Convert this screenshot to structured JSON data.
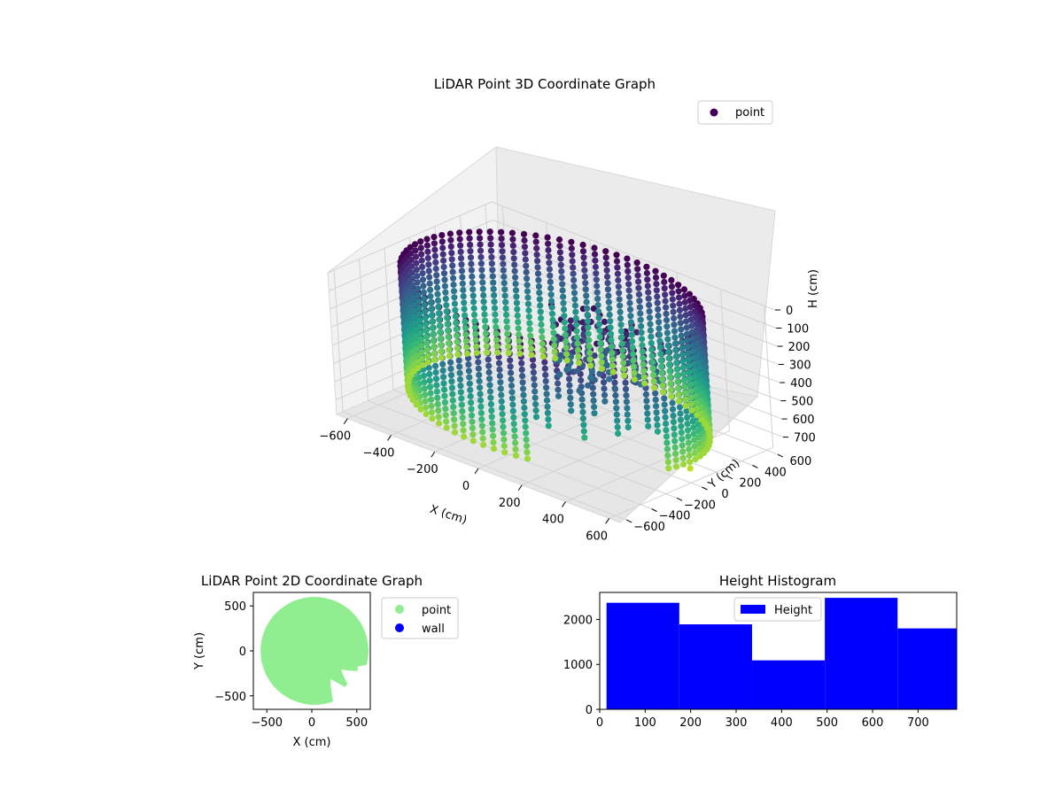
{
  "chart_data": [
    {
      "type": "scatter3d",
      "title": "LiDAR Point 3D Coordinate Graph",
      "xlabel": "X (cm)",
      "ylabel": "Y (cm)",
      "zlabel": "H (cm)",
      "xlim": [
        -650,
        650
      ],
      "ylim": [
        -650,
        650
      ],
      "zlim": [
        0,
        780
      ],
      "z_inverted": true,
      "x_ticks": [
        "−600",
        "−400",
        "−200",
        "0",
        "200",
        "400",
        "600"
      ],
      "y_ticks": [
        "−600",
        "−400",
        "−200",
        "0",
        "200",
        "400",
        "600"
      ],
      "z_ticks": [
        "0",
        "100",
        "200",
        "300",
        "400",
        "500",
        "600",
        "700"
      ],
      "colormap": "viridis",
      "legend": {
        "position": "top-right",
        "entries": [
          {
            "label": "point",
            "color": "#440154"
          }
        ]
      },
      "series": [
        {
          "name": "point",
          "shape": "cylindrical wall scan",
          "radius": 600,
          "center": [
            0,
            0
          ],
          "h_range": [
            0,
            700
          ]
        }
      ],
      "grid": true
    },
    {
      "type": "scatter",
      "title": "LiDAR Point 2D Coordinate Graph",
      "xlabel": "X (cm)",
      "ylabel": "Y (cm)",
      "xlim": [
        -650,
        650
      ],
      "ylim": [
        -650,
        650
      ],
      "x_ticks": [
        "−500",
        "0",
        "500"
      ],
      "y_ticks": [
        "−500",
        "0",
        "500"
      ],
      "legend": {
        "position": "outside-right",
        "entries": [
          {
            "label": "point",
            "color": "#90ee90"
          },
          {
            "label": "wall",
            "color": "#0000ff"
          }
        ]
      },
      "series": [
        {
          "name": "point",
          "color": "#90ee90",
          "shape": "filled disk",
          "radius": 600,
          "center": [
            0,
            0
          ]
        },
        {
          "name": "wall",
          "color": "#0000ff",
          "values": []
        }
      ]
    },
    {
      "type": "histogram",
      "title": "Height Histogram",
      "xlim": [
        0,
        785
      ],
      "ylim": [
        0,
        2600
      ],
      "x_ticks": [
        "0",
        "100",
        "200",
        "300",
        "400",
        "500",
        "600",
        "700"
      ],
      "y_ticks": [
        "0",
        "1000",
        "2000"
      ],
      "legend": {
        "position": "upper-center",
        "entries": [
          {
            "label": "Height",
            "color": "#0000ff"
          }
        ]
      },
      "color": "#0000ff",
      "bins": [
        {
          "start": 15,
          "end": 175,
          "count": 2370
        },
        {
          "start": 175,
          "end": 335,
          "count": 1890
        },
        {
          "start": 335,
          "end": 495,
          "count": 1090
        },
        {
          "start": 495,
          "end": 655,
          "count": 2480
        },
        {
          "start": 655,
          "end": 785,
          "count": 1800
        }
      ]
    }
  ]
}
